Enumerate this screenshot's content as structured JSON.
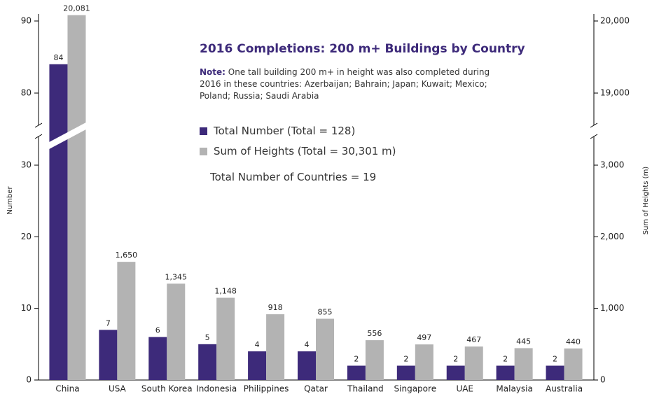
{
  "chart_data": {
    "type": "bar",
    "title": "2016 Completions: 200 m+ Buildings by Country",
    "note_label": "Note:",
    "note": "One tall building 200 m+ in height was also completed during 2016 in these countries: Azerbaijan; Bahrain; Japan; Kuwait; Mexico; Poland; Russia; Saudi Arabia",
    "annotation": "Total Number of Countries = 19",
    "ylabel": "Number",
    "y2label": "Sum of Heights (m)",
    "categories": [
      "China",
      "USA",
      "South Korea",
      "Indonesia",
      "Philippines",
      "Qatar",
      "Thailand",
      "Singapore",
      "UAE",
      "Malaysia",
      "Australia"
    ],
    "series": [
      {
        "name": "Total Number (Total = 128)",
        "color": "#3d2a7a",
        "values": [
          84,
          7,
          6,
          5,
          4,
          4,
          2,
          2,
          2,
          2,
          2
        ]
      },
      {
        "name": "Sum of Heights (Total = 30,301 m)",
        "color": "#b3b3b3",
        "axis": "y2",
        "values": [
          20081,
          1650,
          1345,
          1148,
          918,
          855,
          556,
          497,
          467,
          445,
          440
        ],
        "value_labels": [
          "20,081",
          "1,650",
          "1,345",
          "1,148",
          "918",
          "855",
          "556",
          "497",
          "467",
          "445",
          "440"
        ]
      }
    ],
    "ylim": [
      0,
      90
    ],
    "ybreak": [
      30,
      80
    ],
    "yticks": [
      0,
      10,
      20,
      30,
      80,
      90
    ],
    "y2lim": [
      0,
      20000
    ],
    "y2break": [
      3000,
      19000
    ],
    "y2ticks": [
      0,
      {
        "value": 1000,
        "label": "1,000"
      },
      {
        "value": 2000,
        "label": "2,000"
      },
      {
        "value": 3000,
        "label": "3,000"
      },
      {
        "value": 19000,
        "label": "19,000"
      },
      {
        "value": 20000,
        "label": "20,000"
      }
    ]
  }
}
